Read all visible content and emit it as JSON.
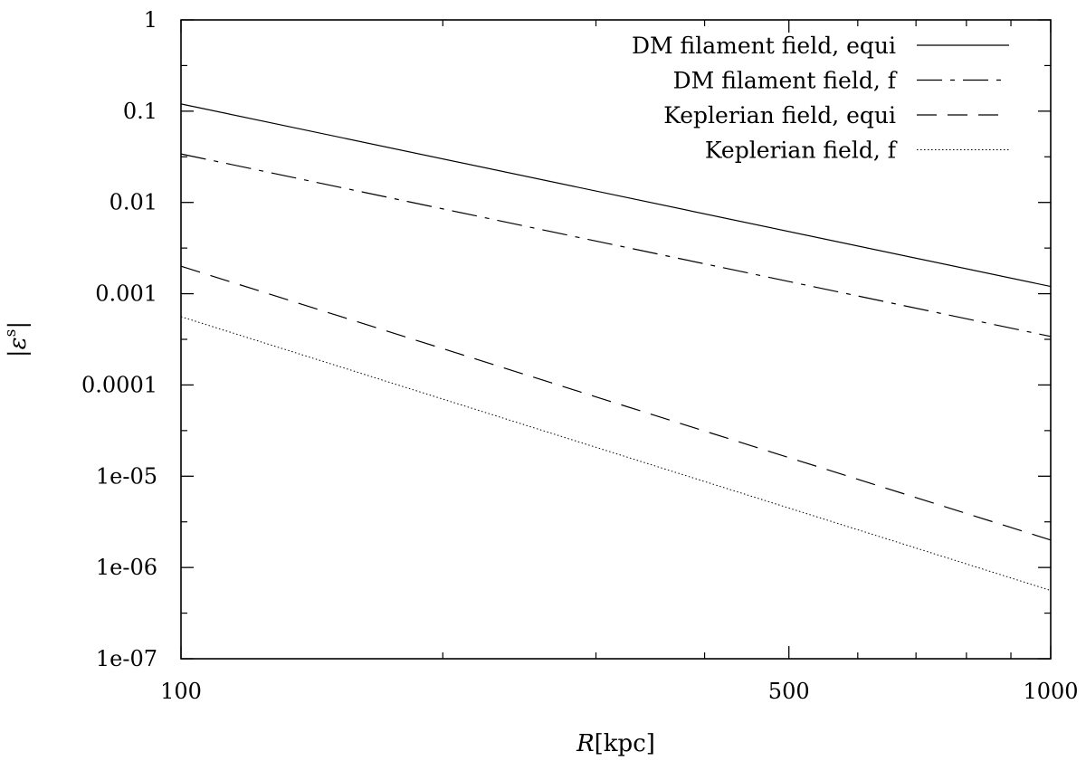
{
  "chart_data": {
    "type": "line",
    "title": "",
    "x_scale": "log",
    "y_scale": "log",
    "xlim": [
      100,
      1000
    ],
    "ylim": [
      1e-07,
      1
    ],
    "x_ticks": [
      {
        "value": 100,
        "label": "100"
      },
      {
        "value": 500,
        "label": "500"
      },
      {
        "value": 1000,
        "label": "1000"
      }
    ],
    "x_minor_ticks": [
      200,
      300,
      400,
      600,
      700,
      800,
      900
    ],
    "y_ticks": [
      {
        "value": 1,
        "label": "1"
      },
      {
        "value": 0.1,
        "label": "0.1"
      },
      {
        "value": 0.01,
        "label": "0.01"
      },
      {
        "value": 0.001,
        "label": "0.001"
      },
      {
        "value": 0.0001,
        "label": "0.0001"
      },
      {
        "value": 1e-05,
        "label": "1e-05"
      },
      {
        "value": 1e-06,
        "label": "1e-06"
      },
      {
        "value": 1e-07,
        "label": "1e-07"
      }
    ],
    "xlabel_italic": "R",
    "xlabel_rest": "[kpc]",
    "ylabel_left": "|",
    "ylabel_main": "ε",
    "ylabel_sup": "s",
    "ylabel_right": "|",
    "grid": false,
    "legend_position": "top-right",
    "series": [
      {
        "name": "DM filament field, equi",
        "style": "solid",
        "x": [
          100,
          1000
        ],
        "y": [
          0.12,
          0.0012
        ]
      },
      {
        "name": "DM filament field, f",
        "style": "dashdot",
        "x": [
          100,
          1000
        ],
        "y": [
          0.034,
          0.00034
        ]
      },
      {
        "name": "Keplerian field, equi",
        "style": "dashed",
        "x": [
          100,
          1000
        ],
        "y": [
          0.002,
          2e-06
        ]
      },
      {
        "name": "Keplerian field, f",
        "style": "dotted",
        "x": [
          100,
          1000
        ],
        "y": [
          0.00056,
          5.6e-07
        ]
      }
    ]
  }
}
